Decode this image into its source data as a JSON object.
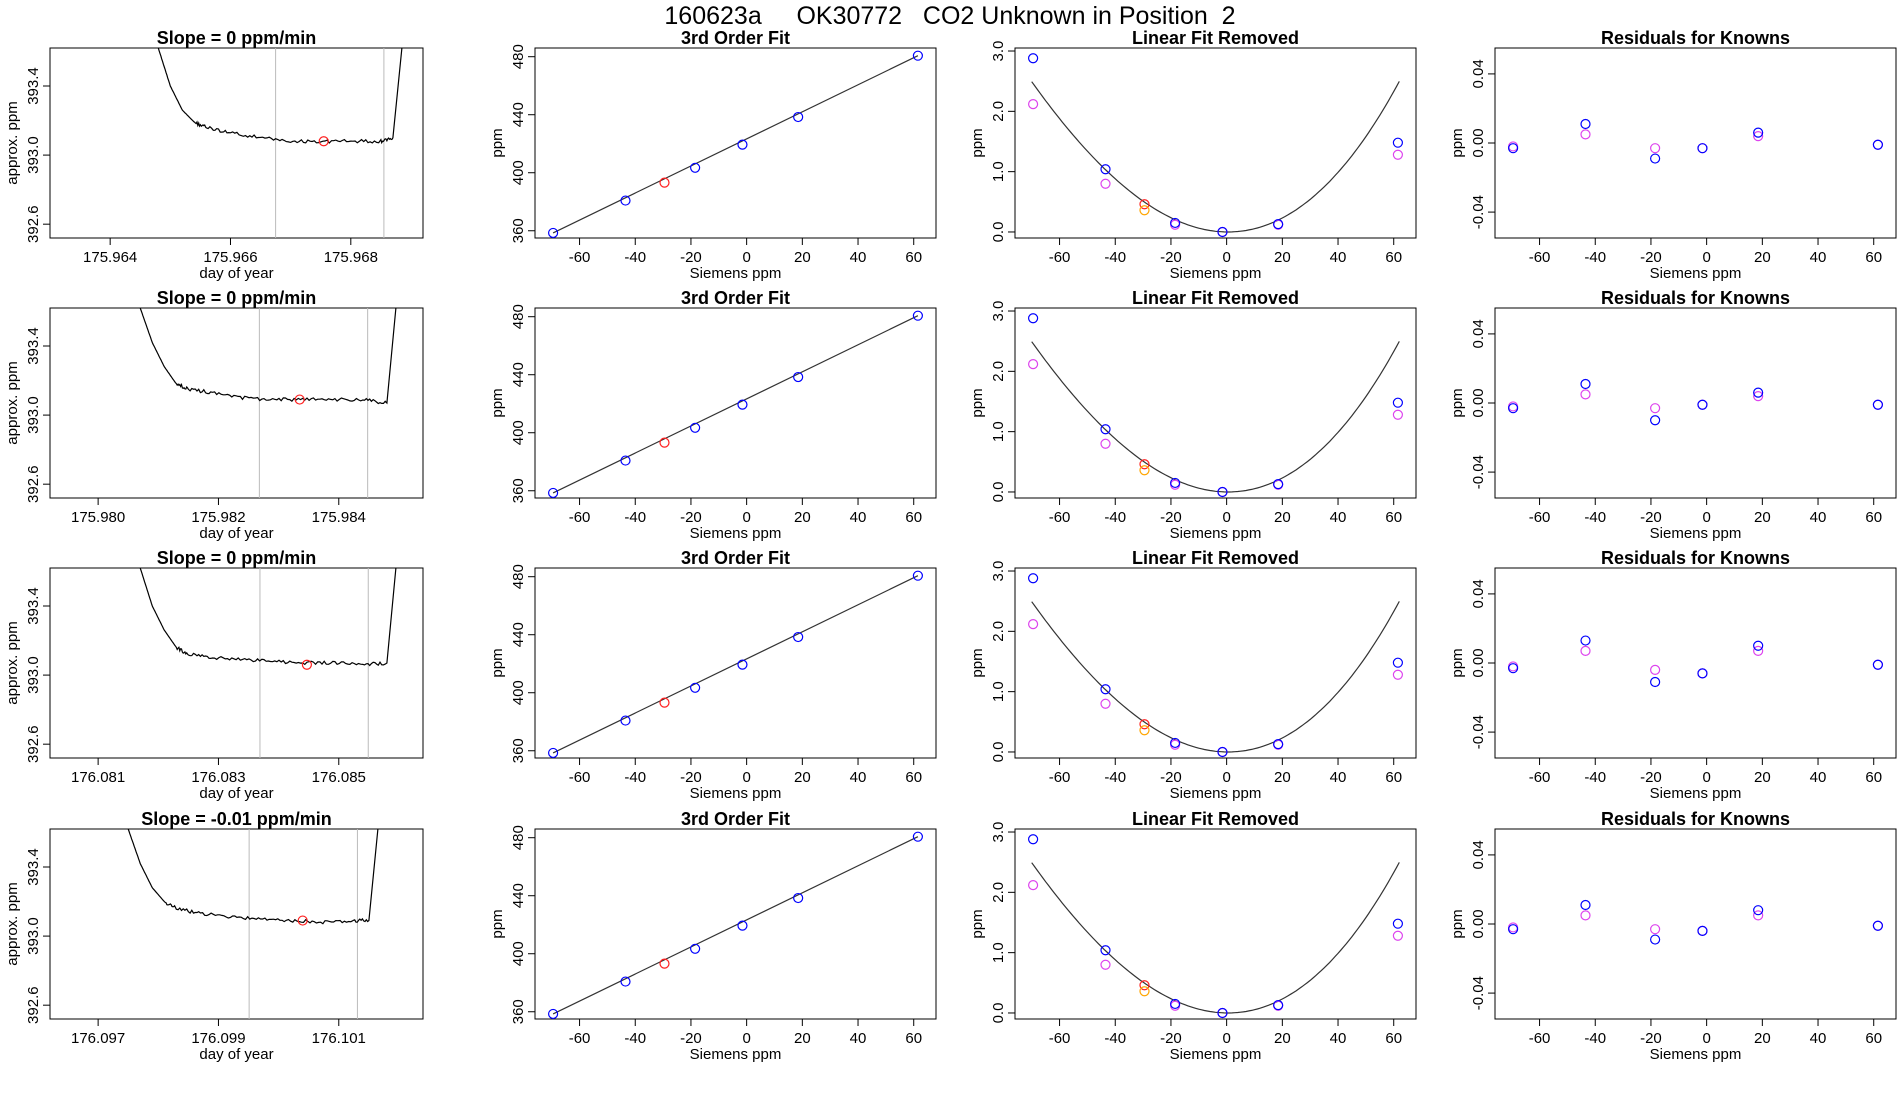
{
  "title": "160623a     OK30772   CO2 Unknown in Position  2",
  "colors": {
    "trace": "#000000",
    "fit_line": "#333333",
    "window_lines": "#bbbbbb",
    "known_blue": "#0000ff",
    "known_magenta": "#dd44ee",
    "unknown_red": "#ff2020",
    "unknown_orange": "#ffa500"
  },
  "chart_data": [
    {
      "row": 0,
      "panel": "time-series",
      "type": "line",
      "title": "Slope =  0  ppm/min",
      "xlabel": "day of year",
      "ylabel": "approx. ppm",
      "xticks": [
        "175.964",
        "175.966",
        "175.968"
      ],
      "xlim": [
        175.963,
        175.9692
      ],
      "yticks": [
        "392.6",
        "393.0",
        "393.4"
      ],
      "ylim": [
        392.52,
        393.62
      ],
      "window": [
        175.96675,
        175.96855
      ],
      "trace_x": [
        175.9648,
        175.965,
        175.9652,
        175.9654,
        175.9656,
        175.966,
        175.9665,
        175.967,
        175.9675,
        175.968,
        175.9685,
        175.9687,
        175.96885
      ],
      "trace_y": [
        393.62,
        393.4,
        393.26,
        393.19,
        393.16,
        393.13,
        393.1,
        393.08,
        393.08,
        393.08,
        393.08,
        393.1,
        393.62
      ],
      "marker": {
        "x": 175.96755,
        "y": 393.08
      }
    },
    {
      "row": 0,
      "panel": "calibration",
      "type": "scatter",
      "title": "3rd Order Fit",
      "xlabel": "Siemens ppm",
      "ylabel": "ppm",
      "xticks": [
        "-60",
        "-40",
        "-20",
        "0",
        "20",
        "40",
        "60"
      ],
      "xlim": [
        -76,
        68
      ],
      "yticks": [
        "360",
        "400",
        "440",
        "480"
      ],
      "ylim": [
        355,
        486
      ],
      "knowns_x": [
        -69.5,
        -43.5,
        -18.5,
        -1.5,
        18.5,
        61.5
      ],
      "knowns_y": [
        358.5,
        380.8,
        403.4,
        419.4,
        438.4,
        480.7
      ],
      "unknown": {
        "x": -29.5,
        "y": 393.2
      }
    },
    {
      "row": 0,
      "panel": "linear-removed",
      "type": "scatter",
      "title": "Linear Fit Removed",
      "xlabel": "Siemens ppm",
      "ylabel": "ppm",
      "xticks": [
        "-60",
        "-40",
        "-20",
        "0",
        "20",
        "40",
        "60"
      ],
      "xlim": [
        -76,
        68
      ],
      "yticks": [
        "0.0",
        "1.0",
        "2.0",
        "3.0"
      ],
      "ylim": [
        -0.1,
        3.05
      ],
      "knowns_x": [
        -69.5,
        -43.5,
        -18.5,
        -1.5,
        18.5,
        61.5
      ],
      "knowns_y": [
        2.88,
        1.04,
        0.15,
        0.0,
        0.13,
        1.48
      ],
      "alt_y": [
        2.12,
        0.8,
        0.12,
        0.0,
        0.12,
        1.28
      ],
      "unknown_y": [
        0.46,
        0.36
      ]
    },
    {
      "row": 0,
      "panel": "residuals",
      "type": "scatter",
      "title": "Residuals for Knowns",
      "xlabel": "Siemens ppm",
      "ylabel": "ppm",
      "xticks": [
        "-60",
        "-40",
        "-20",
        "0",
        "20",
        "40",
        "60"
      ],
      "xlim": [
        -76,
        68
      ],
      "yticks": [
        "-0.04",
        "0.00",
        "0.04"
      ],
      "ylim": [
        -0.055,
        0.055
      ],
      "knowns_x": [
        -69.5,
        -43.5,
        -18.5,
        -1.5,
        18.5,
        61.5
      ],
      "knowns_y": [
        -0.003,
        0.011,
        -0.009,
        -0.003,
        0.006,
        -0.001
      ],
      "alt_y": [
        -0.002,
        0.005,
        -0.003,
        -0.003,
        0.004,
        -0.001
      ]
    },
    {
      "row": 1,
      "panel": "time-series",
      "type": "line",
      "title": "Slope =  0  ppm/min",
      "xlabel": "day of year",
      "ylabel": "approx. ppm",
      "xticks": [
        "175.980",
        "175.982",
        "175.984"
      ],
      "xlim": [
        175.9792,
        175.9854
      ],
      "yticks": [
        "392.6",
        "393.0",
        "393.4"
      ],
      "ylim": [
        392.52,
        393.62
      ],
      "window": [
        175.98268,
        175.98448
      ],
      "trace_x": [
        175.9807,
        175.9809,
        175.9811,
        175.9813,
        175.9815,
        175.9819,
        175.9824,
        175.9829,
        175.9834,
        175.9839,
        175.9844,
        175.9848,
        175.98495
      ],
      "trace_y": [
        393.62,
        393.42,
        393.28,
        393.18,
        393.15,
        393.13,
        393.1,
        393.09,
        393.09,
        393.09,
        393.09,
        393.07,
        393.62
      ],
      "marker": {
        "x": 175.98335,
        "y": 393.09
      }
    },
    {
      "row": 1,
      "panel": "calibration",
      "type": "scatter",
      "title": "3rd Order Fit",
      "xlabel": "Siemens ppm",
      "ylabel": "ppm",
      "xticks": [
        "-60",
        "-40",
        "-20",
        "0",
        "20",
        "40",
        "60"
      ],
      "xlim": [
        -76,
        68
      ],
      "yticks": [
        "360",
        "400",
        "440",
        "480"
      ],
      "ylim": [
        355,
        486
      ],
      "knowns_x": [
        -69.5,
        -43.5,
        -18.5,
        -1.5,
        18.5,
        61.5
      ],
      "knowns_y": [
        358.5,
        380.8,
        403.4,
        419.4,
        438.4,
        480.7
      ],
      "unknown": {
        "x": -29.5,
        "y": 393.2
      }
    },
    {
      "row": 1,
      "panel": "linear-removed",
      "type": "scatter",
      "title": "Linear Fit Removed",
      "xlabel": "Siemens ppm",
      "ylabel": "ppm",
      "xticks": [
        "-60",
        "-40",
        "-20",
        "0",
        "20",
        "40",
        "60"
      ],
      "xlim": [
        -76,
        68
      ],
      "yticks": [
        "0.0",
        "1.0",
        "2.0",
        "3.0"
      ],
      "ylim": [
        -0.1,
        3.05
      ],
      "knowns_x": [
        -69.5,
        -43.5,
        -18.5,
        -1.5,
        18.5,
        61.5
      ],
      "knowns_y": [
        2.88,
        1.04,
        0.15,
        0.0,
        0.13,
        1.48
      ],
      "alt_y": [
        2.12,
        0.8,
        0.12,
        0.0,
        0.12,
        1.28
      ],
      "unknown_y": [
        0.46,
        0.36
      ]
    },
    {
      "row": 1,
      "panel": "residuals",
      "type": "scatter",
      "title": "Residuals for Knowns",
      "xlabel": "Siemens ppm",
      "ylabel": "ppm",
      "xticks": [
        "-60",
        "-40",
        "-20",
        "0",
        "20",
        "40",
        "60"
      ],
      "xlim": [
        -76,
        68
      ],
      "yticks": [
        "-0.04",
        "0.00",
        "0.04"
      ],
      "ylim": [
        -0.055,
        0.055
      ],
      "knowns_x": [
        -69.5,
        -43.5,
        -18.5,
        -1.5,
        18.5,
        61.5
      ],
      "knowns_y": [
        -0.003,
        0.011,
        -0.01,
        -0.001,
        0.006,
        -0.001
      ],
      "alt_y": [
        -0.002,
        0.005,
        -0.003,
        -0.001,
        0.004,
        -0.001
      ]
    },
    {
      "row": 2,
      "panel": "time-series",
      "type": "line",
      "title": "Slope =  0  ppm/min",
      "xlabel": "day of year",
      "ylabel": "approx. ppm",
      "xticks": [
        "176.081",
        "176.083",
        "176.085"
      ],
      "xlim": [
        176.0802,
        176.0864
      ],
      "yticks": [
        "392.6",
        "393.0",
        "393.4"
      ],
      "ylim": [
        392.52,
        393.62
      ],
      "window": [
        176.08369,
        176.08549
      ],
      "trace_x": [
        176.0817,
        176.0819,
        176.0821,
        176.0823,
        176.0825,
        176.0829,
        176.0834,
        176.0839,
        176.0844,
        176.0849,
        176.0854,
        176.0858,
        176.08595
      ],
      "trace_y": [
        393.62,
        393.4,
        393.26,
        393.16,
        393.12,
        393.1,
        393.09,
        393.08,
        393.07,
        393.07,
        393.06,
        393.07,
        393.62
      ],
      "marker": {
        "x": 176.08447,
        "y": 393.06
      }
    },
    {
      "row": 2,
      "panel": "calibration",
      "type": "scatter",
      "title": "3rd Order Fit",
      "xlabel": "Siemens ppm",
      "ylabel": "ppm",
      "xticks": [
        "-60",
        "-40",
        "-20",
        "0",
        "20",
        "40",
        "60"
      ],
      "xlim": [
        -76,
        68
      ],
      "yticks": [
        "360",
        "400",
        "440",
        "480"
      ],
      "ylim": [
        355,
        486
      ],
      "knowns_x": [
        -69.5,
        -43.5,
        -18.5,
        -1.5,
        18.5,
        61.5
      ],
      "knowns_y": [
        358.5,
        380.8,
        403.4,
        419.4,
        438.4,
        480.7
      ],
      "unknown": {
        "x": -29.5,
        "y": 393.2
      }
    },
    {
      "row": 2,
      "panel": "linear-removed",
      "type": "scatter",
      "title": "Linear Fit Removed",
      "xlabel": "Siemens ppm",
      "ylabel": "ppm",
      "xticks": [
        "-60",
        "-40",
        "-20",
        "0",
        "20",
        "40",
        "60"
      ],
      "xlim": [
        -76,
        68
      ],
      "yticks": [
        "0.0",
        "1.0",
        "2.0",
        "3.0"
      ],
      "ylim": [
        -0.1,
        3.05
      ],
      "knowns_x": [
        -69.5,
        -43.5,
        -18.5,
        -1.5,
        18.5,
        61.5
      ],
      "knowns_y": [
        2.88,
        1.04,
        0.15,
        0.0,
        0.13,
        1.48
      ],
      "alt_y": [
        2.12,
        0.8,
        0.12,
        0.0,
        0.12,
        1.28
      ],
      "unknown_y": [
        0.46,
        0.36
      ]
    },
    {
      "row": 2,
      "panel": "residuals",
      "type": "scatter",
      "title": "Residuals for Knowns",
      "xlabel": "Siemens ppm",
      "ylabel": "ppm",
      "xticks": [
        "-60",
        "-40",
        "-20",
        "0",
        "20",
        "40",
        "60"
      ],
      "xlim": [
        -76,
        68
      ],
      "yticks": [
        "-0.04",
        "0.00",
        "0.04"
      ],
      "ylim": [
        -0.055,
        0.055
      ],
      "knowns_x": [
        -69.5,
        -43.5,
        -18.5,
        -1.5,
        18.5,
        61.5
      ],
      "knowns_y": [
        -0.003,
        0.013,
        -0.011,
        -0.006,
        0.01,
        -0.001
      ],
      "alt_y": [
        -0.002,
        0.007,
        -0.004,
        -0.006,
        0.007,
        -0.001
      ]
    },
    {
      "row": 3,
      "panel": "time-series",
      "type": "line",
      "title": "Slope =  -0.01  ppm/min",
      "xlabel": "day of year",
      "ylabel": "approx. ppm",
      "xticks": [
        "176.097",
        "176.099",
        "176.101"
      ],
      "xlim": [
        176.0962,
        176.1024
      ],
      "yticks": [
        "392.6",
        "393.0",
        "393.4"
      ],
      "ylim": [
        392.52,
        393.62
      ],
      "window": [
        176.09951,
        176.10131
      ],
      "trace_x": [
        176.0975,
        176.0977,
        176.0979,
        176.0981,
        176.0983,
        176.0987,
        176.0992,
        176.0997,
        176.1002,
        176.1007,
        176.1012,
        176.1015,
        176.10165
      ],
      "trace_y": [
        393.62,
        393.42,
        393.28,
        393.2,
        393.16,
        393.13,
        393.11,
        393.1,
        393.09,
        393.08,
        393.09,
        393.09,
        393.62
      ],
      "marker": {
        "x": 176.1004,
        "y": 393.09
      }
    },
    {
      "row": 3,
      "panel": "calibration",
      "type": "scatter",
      "title": "3rd Order Fit",
      "xlabel": "Siemens ppm",
      "ylabel": "ppm",
      "xticks": [
        "-60",
        "-40",
        "-20",
        "0",
        "20",
        "40",
        "60"
      ],
      "xlim": [
        -76,
        68
      ],
      "yticks": [
        "360",
        "400",
        "440",
        "480"
      ],
      "ylim": [
        355,
        486
      ],
      "knowns_x": [
        -69.5,
        -43.5,
        -18.5,
        -1.5,
        18.5,
        61.5
      ],
      "knowns_y": [
        358.5,
        380.8,
        403.4,
        419.4,
        438.4,
        480.7
      ],
      "unknown": {
        "x": -29.5,
        "y": 393.2
      }
    },
    {
      "row": 3,
      "panel": "linear-removed",
      "type": "scatter",
      "title": "Linear Fit Removed",
      "xlabel": "Siemens ppm",
      "ylabel": "ppm",
      "xticks": [
        "-60",
        "-40",
        "-20",
        "0",
        "20",
        "40",
        "60"
      ],
      "xlim": [
        -76,
        68
      ],
      "yticks": [
        "0.0",
        "1.0",
        "2.0",
        "3.0"
      ],
      "ylim": [
        -0.1,
        3.05
      ],
      "knowns_x": [
        -69.5,
        -43.5,
        -18.5,
        -1.5,
        18.5,
        61.5
      ],
      "knowns_y": [
        2.88,
        1.04,
        0.15,
        0.0,
        0.13,
        1.48
      ],
      "alt_y": [
        2.12,
        0.8,
        0.12,
        0.0,
        0.12,
        1.28
      ],
      "unknown_y": [
        0.46,
        0.36
      ]
    },
    {
      "row": 3,
      "panel": "residuals",
      "type": "scatter",
      "title": "Residuals for Knowns",
      "xlabel": "Siemens ppm",
      "ylabel": "ppm",
      "xticks": [
        "-60",
        "-40",
        "-20",
        "0",
        "20",
        "40",
        "60"
      ],
      "xlim": [
        -76,
        68
      ],
      "yticks": [
        "-0.04",
        "0.00",
        "0.04"
      ],
      "ylim": [
        -0.055,
        0.055
      ],
      "knowns_x": [
        -69.5,
        -43.5,
        -18.5,
        -1.5,
        18.5,
        61.5
      ],
      "knowns_y": [
        -0.003,
        0.011,
        -0.009,
        -0.004,
        0.008,
        -0.001
      ],
      "alt_y": [
        -0.002,
        0.005,
        -0.003,
        -0.004,
        0.005,
        -0.001
      ]
    }
  ]
}
